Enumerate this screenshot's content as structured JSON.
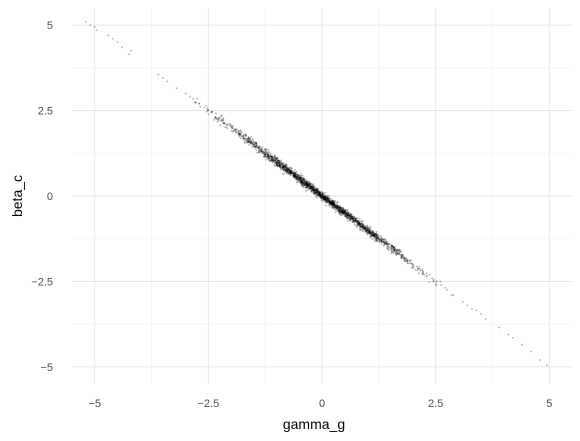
{
  "chart_data": {
    "type": "scatter",
    "title": "",
    "xlabel": "gamma_g",
    "ylabel": "beta_c",
    "xlim": [
      -5.5,
      5.5
    ],
    "ylim": [
      -5.5,
      5.5
    ],
    "x_ticks": [
      -5,
      -2.5,
      0,
      2.5,
      5
    ],
    "x_tick_labels": [
      "−5",
      "−2.5",
      "0",
      "2.5",
      "5"
    ],
    "y_ticks": [
      -5,
      -2.5,
      0,
      2.5,
      5
    ],
    "y_tick_labels": [
      "−5",
      "−2.5",
      "0",
      "2.5",
      "5"
    ],
    "grid": true,
    "legend": "none",
    "point_color": "#000000",
    "point_opacity": 0.3,
    "relationship": {
      "slope": -1.0,
      "intercept": 0.0,
      "description": "approximately y = -x",
      "point_count": 2000
    },
    "series": [
      {
        "name": "",
        "points": [
          [
            -5.2,
            5.1
          ],
          [
            -5.1,
            5.0
          ],
          [
            -5.0,
            4.95
          ],
          [
            -4.95,
            4.85
          ],
          [
            -4.7,
            4.7
          ],
          [
            -4.6,
            4.6
          ],
          [
            -4.5,
            4.5
          ],
          [
            -4.4,
            4.35
          ],
          [
            -4.25,
            4.15
          ],
          [
            -4.2,
            4.25
          ],
          [
            -3.6,
            3.55
          ],
          [
            -3.5,
            3.45
          ],
          [
            -3.4,
            3.35
          ],
          [
            -3.2,
            3.15
          ],
          [
            -3.0,
            3.0
          ],
          [
            -2.9,
            2.9
          ],
          [
            -2.8,
            2.75
          ],
          [
            -2.7,
            2.7
          ],
          [
            3.1,
            -3.1
          ],
          [
            3.2,
            -3.2
          ],
          [
            3.3,
            -3.3
          ],
          [
            3.4,
            -3.35
          ],
          [
            3.5,
            -3.45
          ],
          [
            3.6,
            -3.6
          ],
          [
            3.9,
            -3.85
          ],
          [
            4.1,
            -4.05
          ],
          [
            4.2,
            -4.15
          ],
          [
            4.4,
            -4.35
          ],
          [
            4.6,
            -4.55
          ],
          [
            4.8,
            -4.8
          ],
          [
            4.95,
            -4.95
          ]
        ]
      }
    ]
  }
}
